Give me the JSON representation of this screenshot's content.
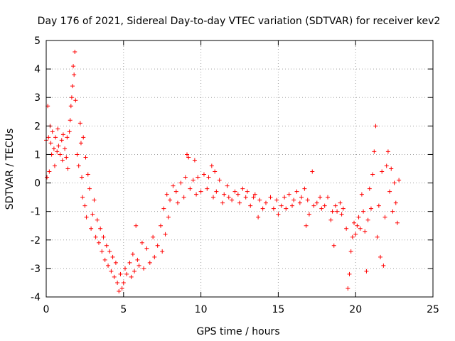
{
  "chart_data": {
    "type": "scatter",
    "title": "Day 176 of 2021, Sidereal Day-to-day VTEC variation (SDTVAR) for receiver kev2",
    "xlabel": "GPS time / hours",
    "ylabel": "SDTVAR / TECUs",
    "xlim": [
      0,
      25
    ],
    "ylim": [
      -4,
      5
    ],
    "xticks": [
      0,
      5,
      10,
      15,
      20,
      25
    ],
    "yticks": [
      -4,
      -3,
      -2,
      -1,
      0,
      1,
      2,
      3,
      4,
      5
    ],
    "xtick_labels": [
      "0",
      "5",
      "10",
      "15",
      "20",
      "25"
    ],
    "ytick_labels": [
      "-4",
      "-3",
      "-2",
      "-1",
      "0",
      "1",
      "2",
      "3",
      "4",
      "5"
    ],
    "grid": true,
    "marker": "+",
    "series": [
      {
        "name": "SDTVAR kev2",
        "color": "#ff0000",
        "points": [
          [
            0.0,
            1.5
          ],
          [
            0.05,
            0.2
          ],
          [
            0.1,
            2.7
          ],
          [
            0.15,
            1.6
          ],
          [
            0.2,
            0.4
          ],
          [
            0.25,
            2.0
          ],
          [
            0.3,
            1.4
          ],
          [
            0.35,
            1.0
          ],
          [
            0.4,
            1.8
          ],
          [
            0.5,
            1.2
          ],
          [
            0.55,
            0.6
          ],
          [
            0.6,
            1.6
          ],
          [
            0.7,
            1.1
          ],
          [
            0.75,
            1.9
          ],
          [
            0.8,
            1.3
          ],
          [
            0.9,
            1.0
          ],
          [
            1.0,
            1.5
          ],
          [
            1.05,
            0.8
          ],
          [
            1.1,
            1.7
          ],
          [
            1.2,
            1.2
          ],
          [
            1.3,
            0.9
          ],
          [
            1.35,
            1.6
          ],
          [
            1.4,
            0.5
          ],
          [
            1.5,
            1.8
          ],
          [
            1.55,
            2.2
          ],
          [
            1.6,
            2.7
          ],
          [
            1.65,
            3.0
          ],
          [
            1.7,
            3.4
          ],
          [
            1.75,
            4.1
          ],
          [
            1.8,
            3.8
          ],
          [
            1.85,
            4.6
          ],
          [
            1.9,
            2.9
          ],
          [
            2.0,
            1.0
          ],
          [
            2.1,
            0.6
          ],
          [
            2.2,
            2.1
          ],
          [
            2.25,
            1.4
          ],
          [
            2.3,
            0.2
          ],
          [
            2.35,
            -0.5
          ],
          [
            2.4,
            1.6
          ],
          [
            2.5,
            -0.8
          ],
          [
            2.55,
            0.9
          ],
          [
            2.6,
            -1.2
          ],
          [
            2.7,
            0.3
          ],
          [
            2.8,
            -0.2
          ],
          [
            2.9,
            -1.6
          ],
          [
            3.0,
            -1.1
          ],
          [
            3.1,
            -0.6
          ],
          [
            3.2,
            -1.9
          ],
          [
            3.3,
            -1.3
          ],
          [
            3.4,
            -2.1
          ],
          [
            3.5,
            -1.6
          ],
          [
            3.6,
            -2.4
          ],
          [
            3.7,
            -1.9
          ],
          [
            3.8,
            -2.7
          ],
          [
            3.9,
            -2.2
          ],
          [
            4.0,
            -2.9
          ],
          [
            4.1,
            -2.4
          ],
          [
            4.2,
            -3.1
          ],
          [
            4.3,
            -2.6
          ],
          [
            4.4,
            -3.3
          ],
          [
            4.5,
            -2.8
          ],
          [
            4.6,
            -3.5
          ],
          [
            4.7,
            -3.8
          ],
          [
            4.8,
            -3.2
          ],
          [
            4.9,
            -3.7
          ],
          [
            5.0,
            -3.5
          ],
          [
            5.1,
            -3.0
          ],
          [
            5.2,
            -3.2
          ],
          [
            5.4,
            -2.8
          ],
          [
            5.5,
            -3.3
          ],
          [
            5.6,
            -2.5
          ],
          [
            5.7,
            -3.1
          ],
          [
            5.8,
            -1.5
          ],
          [
            5.9,
            -2.7
          ],
          [
            6.0,
            -2.9
          ],
          [
            6.2,
            -2.1
          ],
          [
            6.3,
            -3.0
          ],
          [
            6.5,
            -2.3
          ],
          [
            6.7,
            -2.8
          ],
          [
            6.9,
            -1.9
          ],
          [
            7.0,
            -2.6
          ],
          [
            7.2,
            -2.2
          ],
          [
            7.4,
            -1.5
          ],
          [
            7.5,
            -2.4
          ],
          [
            7.6,
            -0.9
          ],
          [
            7.7,
            -1.8
          ],
          [
            7.8,
            -0.4
          ],
          [
            7.9,
            -1.2
          ],
          [
            8.0,
            -0.6
          ],
          [
            8.2,
            -0.1
          ],
          [
            8.4,
            -0.3
          ],
          [
            8.5,
            -0.7
          ],
          [
            8.7,
            0.0
          ],
          [
            8.9,
            -0.5
          ],
          [
            9.0,
            0.2
          ],
          [
            9.1,
            1.0
          ],
          [
            9.2,
            0.9
          ],
          [
            9.3,
            -0.2
          ],
          [
            9.5,
            0.1
          ],
          [
            9.6,
            0.8
          ],
          [
            9.7,
            -0.4
          ],
          [
            9.8,
            0.2
          ],
          [
            10.0,
            -0.3
          ],
          [
            10.2,
            0.3
          ],
          [
            10.4,
            -0.2
          ],
          [
            10.5,
            0.2
          ],
          [
            10.7,
            0.6
          ],
          [
            10.8,
            -0.5
          ],
          [
            10.9,
            0.4
          ],
          [
            11.0,
            -0.3
          ],
          [
            11.2,
            0.1
          ],
          [
            11.4,
            -0.7
          ],
          [
            11.5,
            -0.4
          ],
          [
            11.7,
            -0.1
          ],
          [
            11.8,
            -0.5
          ],
          [
            12.0,
            -0.6
          ],
          [
            12.2,
            -0.3
          ],
          [
            12.4,
            -0.4
          ],
          [
            12.5,
            -0.7
          ],
          [
            12.7,
            -0.2
          ],
          [
            12.9,
            -0.5
          ],
          [
            13.0,
            -0.3
          ],
          [
            13.2,
            -0.8
          ],
          [
            13.4,
            -0.5
          ],
          [
            13.5,
            -0.4
          ],
          [
            13.7,
            -1.2
          ],
          [
            13.8,
            -0.6
          ],
          [
            14.0,
            -0.9
          ],
          [
            14.2,
            -0.7
          ],
          [
            14.5,
            -0.5
          ],
          [
            14.7,
            -0.9
          ],
          [
            14.9,
            -0.6
          ],
          [
            15.0,
            -1.1
          ],
          [
            15.2,
            -0.8
          ],
          [
            15.4,
            -0.5
          ],
          [
            15.5,
            -0.9
          ],
          [
            15.7,
            -0.4
          ],
          [
            15.9,
            -0.8
          ],
          [
            16.0,
            -0.6
          ],
          [
            16.2,
            -0.3
          ],
          [
            16.4,
            -0.7
          ],
          [
            16.5,
            -0.5
          ],
          [
            16.7,
            -0.2
          ],
          [
            16.8,
            -1.5
          ],
          [
            16.9,
            -0.6
          ],
          [
            17.0,
            -1.1
          ],
          [
            17.2,
            0.4
          ],
          [
            17.3,
            -0.8
          ],
          [
            17.5,
            -0.7
          ],
          [
            17.7,
            -0.5
          ],
          [
            17.8,
            -0.9
          ],
          [
            18.0,
            -0.8
          ],
          [
            18.2,
            -0.5
          ],
          [
            18.4,
            -1.3
          ],
          [
            18.5,
            -1.0
          ],
          [
            18.6,
            -2.2
          ],
          [
            18.7,
            -0.8
          ],
          [
            18.8,
            -1.0
          ],
          [
            19.0,
            -0.7
          ],
          [
            19.1,
            -1.1
          ],
          [
            19.2,
            -0.9
          ],
          [
            19.4,
            -1.6
          ],
          [
            19.5,
            -3.7
          ],
          [
            19.6,
            -3.2
          ],
          [
            19.7,
            -2.4
          ],
          [
            19.8,
            -1.9
          ],
          [
            19.9,
            -1.4
          ],
          [
            20.0,
            -1.8
          ],
          [
            20.1,
            -1.5
          ],
          [
            20.2,
            -1.2
          ],
          [
            20.3,
            -1.6
          ],
          [
            20.4,
            -0.4
          ],
          [
            20.5,
            -1.0
          ],
          [
            20.6,
            -1.7
          ],
          [
            20.7,
            -3.1
          ],
          [
            20.8,
            -1.3
          ],
          [
            20.9,
            -0.2
          ],
          [
            21.0,
            -0.9
          ],
          [
            21.1,
            0.3
          ],
          [
            21.2,
            1.1
          ],
          [
            21.3,
            2.0
          ],
          [
            21.4,
            -1.9
          ],
          [
            21.5,
            -0.8
          ],
          [
            21.6,
            -2.6
          ],
          [
            21.7,
            0.4
          ],
          [
            21.8,
            -2.9
          ],
          [
            21.9,
            -1.2
          ],
          [
            22.0,
            0.6
          ],
          [
            22.1,
            1.1
          ],
          [
            22.2,
            -0.3
          ],
          [
            22.3,
            0.5
          ],
          [
            22.4,
            -1.0
          ],
          [
            22.5,
            0.0
          ],
          [
            22.6,
            -0.7
          ],
          [
            22.7,
            -1.4
          ],
          [
            22.8,
            0.1
          ]
        ]
      }
    ]
  }
}
